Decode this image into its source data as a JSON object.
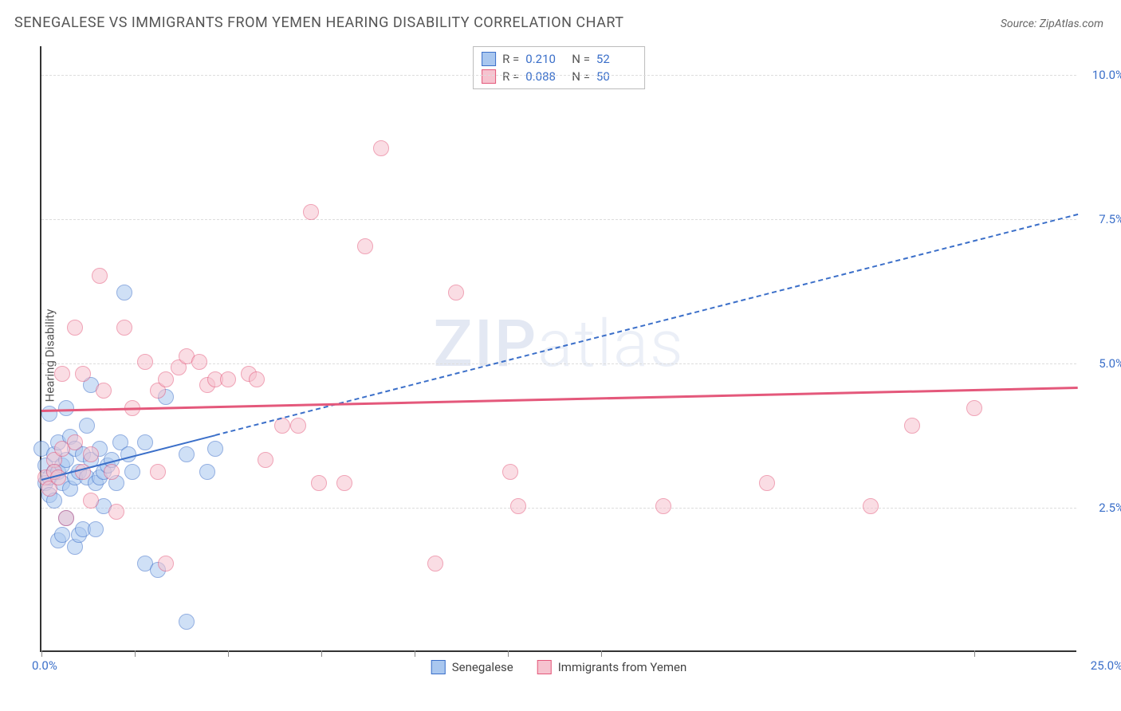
{
  "title": "SENEGALESE VS IMMIGRANTS FROM YEMEN HEARING DISABILITY CORRELATION CHART",
  "source": "Source: ZipAtlas.com",
  "ylabel": "Hearing Disability",
  "watermark_a": "ZIP",
  "watermark_b": "atlas",
  "chart": {
    "type": "scatter",
    "xlim": [
      0,
      25
    ],
    "ylim": [
      0,
      10.5
    ],
    "x_tick_positions_pct": [
      0,
      9,
      18,
      27,
      36,
      45,
      54,
      90
    ],
    "x_first_label": "0.0%",
    "x_last_label": "25.0%",
    "y_gridlines": [
      {
        "val": 2.5,
        "label": "2.5%"
      },
      {
        "val": 5.0,
        "label": "5.0%"
      },
      {
        "val": 7.5,
        "label": "7.5%"
      },
      {
        "val": 10.0,
        "label": "10.0%"
      }
    ],
    "background_color": "#ffffff",
    "grid_color": "#dddddd",
    "axis_color": "#333333",
    "marker_radius": 10,
    "marker_opacity": 0.55,
    "series": [
      {
        "name": "Senegalese",
        "fill": "#a9c7ef",
        "stroke": "#3b6fc9",
        "r_value": "0.210",
        "n_value": "52",
        "trend": {
          "x1": 0.0,
          "y1": 3.0,
          "x2": 25.0,
          "y2": 7.6,
          "solid_until_x": 4.2,
          "dash": "6 5",
          "width": 2
        },
        "points": [
          [
            0.0,
            3.5
          ],
          [
            0.1,
            2.9
          ],
          [
            0.1,
            3.2
          ],
          [
            0.2,
            3.0
          ],
          [
            0.2,
            2.7
          ],
          [
            0.2,
            4.1
          ],
          [
            0.3,
            3.4
          ],
          [
            0.3,
            3.1
          ],
          [
            0.3,
            2.6
          ],
          [
            0.4,
            3.6
          ],
          [
            0.4,
            3.1
          ],
          [
            0.4,
            1.9
          ],
          [
            0.5,
            3.2
          ],
          [
            0.5,
            2.9
          ],
          [
            0.5,
            2.0
          ],
          [
            0.6,
            3.3
          ],
          [
            0.6,
            4.2
          ],
          [
            0.6,
            2.3
          ],
          [
            0.7,
            3.7
          ],
          [
            0.7,
            2.8
          ],
          [
            0.8,
            3.0
          ],
          [
            0.8,
            3.5
          ],
          [
            0.8,
            1.8
          ],
          [
            0.9,
            2.0
          ],
          [
            0.9,
            3.1
          ],
          [
            1.0,
            3.4
          ],
          [
            1.0,
            2.1
          ],
          [
            1.1,
            3.0
          ],
          [
            1.1,
            3.9
          ],
          [
            1.2,
            3.3
          ],
          [
            1.2,
            4.6
          ],
          [
            1.3,
            2.9
          ],
          [
            1.3,
            2.1
          ],
          [
            1.4,
            3.0
          ],
          [
            1.4,
            3.5
          ],
          [
            1.5,
            2.5
          ],
          [
            1.5,
            3.1
          ],
          [
            1.6,
            3.2
          ],
          [
            1.7,
            3.3
          ],
          [
            1.8,
            2.9
          ],
          [
            1.9,
            3.6
          ],
          [
            2.0,
            6.2
          ],
          [
            2.1,
            3.4
          ],
          [
            2.2,
            3.1
          ],
          [
            2.5,
            3.6
          ],
          [
            2.5,
            1.5
          ],
          [
            2.8,
            1.4
          ],
          [
            3.0,
            4.4
          ],
          [
            3.5,
            0.5
          ],
          [
            3.5,
            3.4
          ],
          [
            4.0,
            3.1
          ],
          [
            4.2,
            3.5
          ]
        ]
      },
      {
        "name": "Immigrants from Yemen",
        "fill": "#f6c3cf",
        "stroke": "#e4587b",
        "r_value": "0.088",
        "n_value": "50",
        "trend": {
          "x1": 0.0,
          "y1": 4.2,
          "x2": 25.0,
          "y2": 4.6,
          "solid_until_x": 25.0,
          "dash": "",
          "width": 3
        },
        "points": [
          [
            0.1,
            3.0
          ],
          [
            0.2,
            2.8
          ],
          [
            0.3,
            3.3
          ],
          [
            0.3,
            3.1
          ],
          [
            0.4,
            3.0
          ],
          [
            0.5,
            4.8
          ],
          [
            0.5,
            3.5
          ],
          [
            0.6,
            2.3
          ],
          [
            0.8,
            5.6
          ],
          [
            0.8,
            3.6
          ],
          [
            1.0,
            4.8
          ],
          [
            1.0,
            3.1
          ],
          [
            1.2,
            2.6
          ],
          [
            1.2,
            3.4
          ],
          [
            1.4,
            6.5
          ],
          [
            1.5,
            4.5
          ],
          [
            1.7,
            3.1
          ],
          [
            1.8,
            2.4
          ],
          [
            2.0,
            5.6
          ],
          [
            2.2,
            4.2
          ],
          [
            2.5,
            5.0
          ],
          [
            2.8,
            4.5
          ],
          [
            2.8,
            3.1
          ],
          [
            3.0,
            1.5
          ],
          [
            3.0,
            4.7
          ],
          [
            3.3,
            4.9
          ],
          [
            3.5,
            5.1
          ],
          [
            3.8,
            5.0
          ],
          [
            4.0,
            4.6
          ],
          [
            4.2,
            4.7
          ],
          [
            4.5,
            4.7
          ],
          [
            5.0,
            4.8
          ],
          [
            5.2,
            4.7
          ],
          [
            5.4,
            3.3
          ],
          [
            5.8,
            3.9
          ],
          [
            6.2,
            3.9
          ],
          [
            6.5,
            7.6
          ],
          [
            6.7,
            2.9
          ],
          [
            7.3,
            2.9
          ],
          [
            7.8,
            7.0
          ],
          [
            8.2,
            8.7
          ],
          [
            9.5,
            1.5
          ],
          [
            10.0,
            6.2
          ],
          [
            11.3,
            3.1
          ],
          [
            11.5,
            2.5
          ],
          [
            15.0,
            2.5
          ],
          [
            17.5,
            2.9
          ],
          [
            20.0,
            2.5
          ],
          [
            21.0,
            3.9
          ],
          [
            22.5,
            4.2
          ]
        ]
      }
    ],
    "legend_top": {
      "r_label": "R  =",
      "n_label": "N  ="
    },
    "legend_bottom": [
      {
        "swatch_fill": "#a9c7ef",
        "swatch_stroke": "#3b6fc9",
        "label": "Senegalese"
      },
      {
        "swatch_fill": "#f6c3cf",
        "swatch_stroke": "#e4587b",
        "label": "Immigrants from Yemen"
      }
    ]
  }
}
